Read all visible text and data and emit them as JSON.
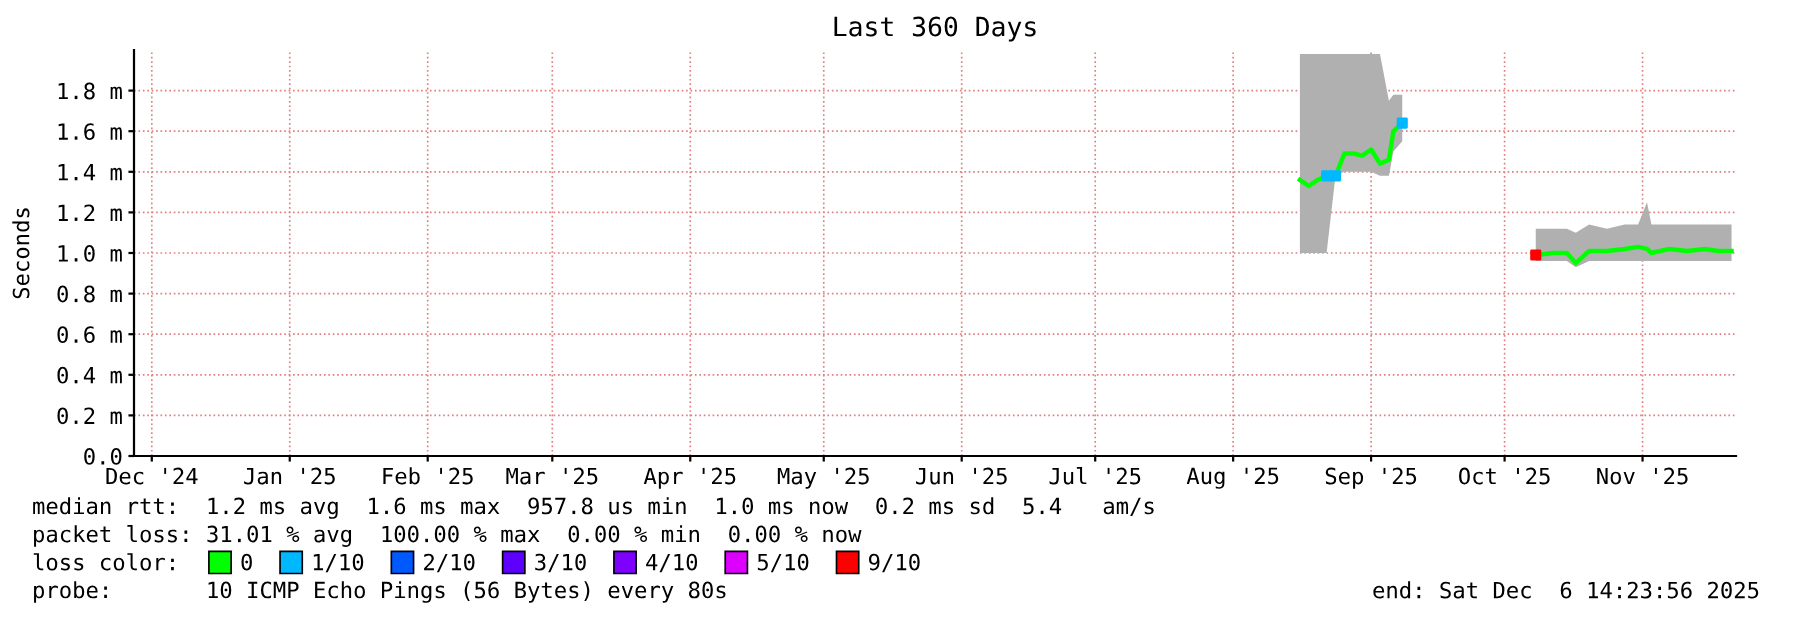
{
  "chart_data": {
    "type": "line",
    "title": "Last 360 Days",
    "ylabel": "Seconds",
    "x": [
      "2025-08-30",
      "2025-09-01",
      "2025-09-03",
      "2025-09-05",
      "2025-09-07",
      "2025-09-09",
      "2025-09-11",
      "2025-09-13",
      "2025-09-15",
      "2025-09-17",
      "2025-09-19",
      "2025-09-20",
      "2025-09-22",
      "2025-10-01",
      "2025-10-22",
      "2025-10-26",
      "2025-10-29",
      "2025-10-31",
      "2025-11-03",
      "2025-11-07",
      "2025-11-11",
      "2025-11-14",
      "2025-11-16",
      "2025-11-17",
      "2025-11-21",
      "2025-11-25",
      "2025-11-29",
      "2025-12-02",
      "2025-12-05"
    ],
    "series": [
      {
        "name": "0",
        "color": "#00ff00",
        "values": [
          1.36,
          1.33,
          1.36,
          1.38,
          1.38,
          1.49,
          1.49,
          1.48,
          1.51,
          1.44,
          1.46,
          1.6,
          1.64,
          null,
          0.99,
          1.0,
          1.0,
          0.95,
          1.01,
          1.01,
          1.02,
          1.03,
          1.02,
          1.0,
          1.02,
          1.01,
          1.02,
          1.01,
          1.01
        ],
        "lower": [
          1.0,
          1.0,
          1.0,
          1.0,
          1.38,
          1.4,
          1.4,
          1.4,
          1.4,
          1.38,
          1.38,
          1.5,
          1.55,
          null,
          0.96,
          0.96,
          0.96,
          0.93,
          0.96,
          0.96,
          0.96,
          0.96,
          0.96,
          0.96,
          0.96,
          0.96,
          0.96,
          0.96,
          0.96
        ],
        "upper": [
          1.98,
          1.98,
          1.98,
          1.98,
          1.98,
          1.98,
          1.98,
          1.98,
          1.98,
          1.98,
          1.75,
          1.78,
          1.78,
          null,
          1.12,
          1.12,
          1.12,
          1.1,
          1.14,
          1.12,
          1.14,
          1.14,
          1.25,
          1.14,
          1.14,
          1.14,
          1.14,
          1.14,
          1.14
        ]
      },
      {
        "name": "1/10",
        "type": "scatter",
        "color": "#00b8ff",
        "values": [
          null,
          null,
          null,
          1.38,
          1.38,
          null,
          null,
          null,
          null,
          null,
          null,
          null,
          1.64,
          null,
          null,
          null,
          null,
          null,
          null,
          null,
          null,
          null,
          null,
          null,
          null,
          null,
          null,
          null,
          null
        ]
      },
      {
        "name": "2/10",
        "type": "scatter",
        "color": "#0059ff",
        "values": [
          null,
          null,
          null,
          null,
          null,
          null,
          null,
          null,
          null,
          null,
          null,
          null,
          null,
          null,
          null,
          null,
          null,
          null,
          null,
          null,
          null,
          null,
          null,
          null,
          null,
          null,
          null,
          null,
          null
        ]
      },
      {
        "name": "3/10",
        "type": "scatter",
        "color": "#5e00ff",
        "values": [
          null,
          null,
          null,
          null,
          null,
          null,
          null,
          null,
          null,
          null,
          null,
          null,
          null,
          null,
          null,
          null,
          null,
          null,
          null,
          null,
          null,
          null,
          null,
          null,
          null,
          null,
          null,
          null,
          null
        ]
      },
      {
        "name": "4/10",
        "type": "scatter",
        "color": "#7e00ff",
        "values": [
          null,
          null,
          null,
          null,
          null,
          null,
          null,
          null,
          null,
          null,
          null,
          null,
          null,
          null,
          null,
          null,
          null,
          null,
          null,
          null,
          null,
          null,
          null,
          null,
          null,
          null,
          null,
          null,
          null
        ]
      },
      {
        "name": "5/10",
        "type": "scatter",
        "color": "#dd00ff",
        "values": [
          null,
          null,
          null,
          null,
          null,
          null,
          null,
          null,
          null,
          null,
          null,
          null,
          null,
          null,
          null,
          null,
          null,
          null,
          null,
          null,
          null,
          null,
          null,
          null,
          null,
          null,
          null,
          null,
          null
        ]
      },
      {
        "name": "9/10",
        "type": "scatter",
        "color": "#ff0000",
        "values": [
          null,
          null,
          null,
          null,
          null,
          null,
          null,
          null,
          null,
          null,
          null,
          null,
          null,
          null,
          0.99,
          null,
          null,
          null,
          null,
          null,
          null,
          null,
          null,
          null,
          null,
          null,
          null,
          null,
          null
        ]
      }
    ],
    "xlim": [
      "2024-12-11",
      "2025-12-06"
    ],
    "xticks": [
      {
        "value": "2024-12-15",
        "label": "Dec '24"
      },
      {
        "value": "2025-01-15",
        "label": "Jan '25"
      },
      {
        "value": "2025-02-15",
        "label": "Feb '25"
      },
      {
        "value": "2025-03-15",
        "label": "Mar '25"
      },
      {
        "value": "2025-04-15",
        "label": "Apr '25"
      },
      {
        "value": "2025-05-15",
        "label": "May '25"
      },
      {
        "value": "2025-06-15",
        "label": "Jun '25"
      },
      {
        "value": "2025-07-15",
        "label": "Jul '25"
      },
      {
        "value": "2025-08-15",
        "label": "Aug '25"
      },
      {
        "value": "2025-09-15",
        "label": "Sep '25"
      },
      {
        "value": "2025-10-15",
        "label": "Oct '25"
      },
      {
        "value": "2025-11-15",
        "label": "Nov '25"
      }
    ],
    "ylim": [
      0,
      2.0
    ],
    "yticks": [
      {
        "value": 0,
        "label": "0.0"
      },
      {
        "value": 0.2,
        "label": "0.2 m"
      },
      {
        "value": 0.4,
        "label": "0.4 m"
      },
      {
        "value": 0.6,
        "label": "0.6 m"
      },
      {
        "value": 0.8,
        "label": "0.8 m"
      },
      {
        "value": 1.0,
        "label": "1.0 m"
      },
      {
        "value": 1.2,
        "label": "1.2 m"
      },
      {
        "value": 1.4,
        "label": "1.4 m"
      },
      {
        "value": 1.6,
        "label": "1.6 m"
      },
      {
        "value": 1.8,
        "label": "1.8 m"
      }
    ],
    "grid": true,
    "legend": "bottom",
    "legend_title": "loss color:",
    "annotations": [
      "median rtt:  1.2 ms avg  1.6 ms max  957.8 us min  1.0 ms now  0.2 ms sd  5.4   am/s",
      "packet loss: 31.01 % avg  100.00 % max  0.00 % min  0.00 % now",
      "probe:       10 ICMP Echo Pings (56 Bytes) every 80s",
      "end: Sat Dec  6 14:23:56 2025"
    ]
  }
}
